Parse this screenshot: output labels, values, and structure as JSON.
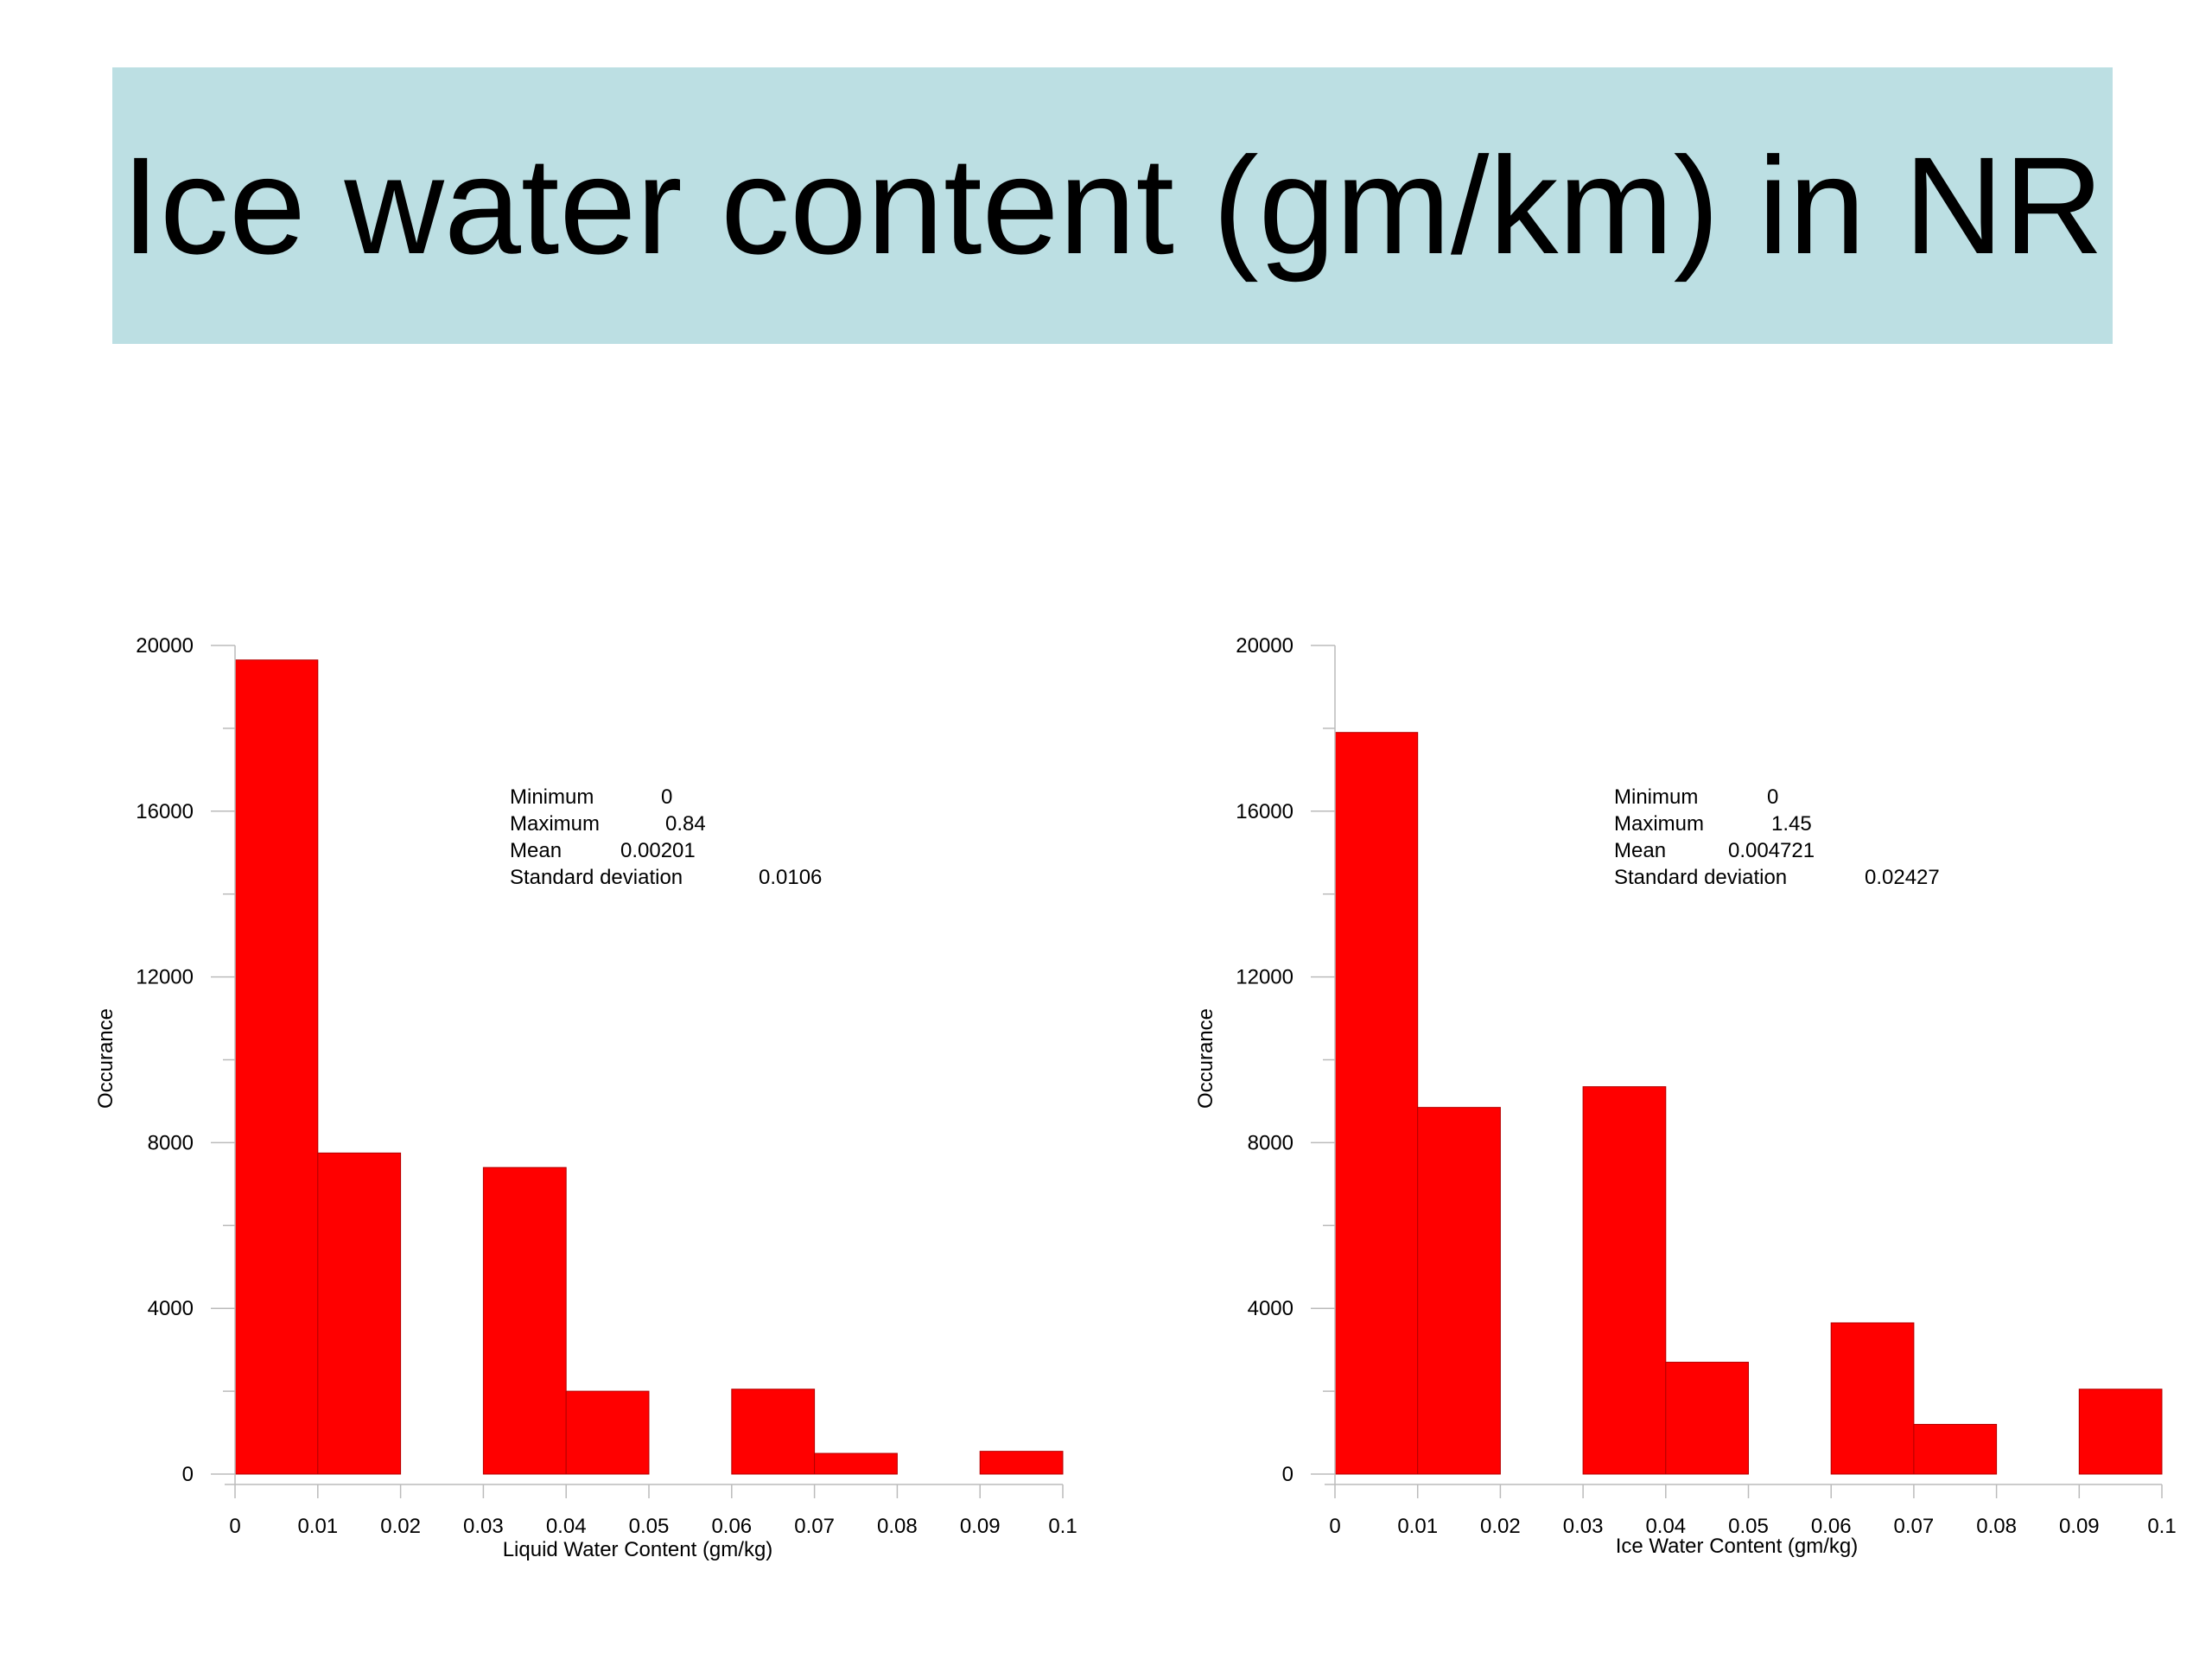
{
  "slide": {
    "title": "Ice water content (gm/km) in NR"
  },
  "colors": {
    "banner": "#bcdfe3",
    "bar": "#ff0000",
    "bar_edge": "#b40000"
  },
  "chart_data": [
    {
      "type": "bar",
      "title": "",
      "xlabel": "Liquid Water Content (gm/kg)",
      "ylabel": "Occurance",
      "bin_edges": [
        0,
        0.01,
        0.02,
        0.03,
        0.04,
        0.05,
        0.06,
        0.07,
        0.08,
        0.09,
        0.1
      ],
      "values": [
        19650,
        7750,
        0,
        7400,
        2000,
        0,
        2050,
        500,
        0,
        550
      ],
      "xlim": [
        0,
        0.1
      ],
      "ylim": [
        0,
        20000
      ],
      "x_ticks": [
        "0",
        "0.01",
        "0.02",
        "0.03",
        "0.04",
        "0.05",
        "0.06",
        "0.07",
        "0.08",
        "0.09",
        "0.1"
      ],
      "y_ticks": [
        "0",
        "4000",
        "8000",
        "12000",
        "16000",
        "20000"
      ],
      "stats": [
        {
          "label": "Minimum",
          "value": "0"
        },
        {
          "label": "Maximum",
          "value": "0.84"
        },
        {
          "label": "Mean",
          "value": "0.00201"
        },
        {
          "label": "Standard deviation",
          "value": "0.0106"
        }
      ],
      "grid": false
    },
    {
      "type": "bar",
      "title": "",
      "xlabel": "Ice Water Content (gm/kg)",
      "ylabel": "Occurance",
      "bin_edges": [
        0,
        0.01,
        0.02,
        0.03,
        0.04,
        0.05,
        0.06,
        0.07,
        0.08,
        0.09,
        0.1
      ],
      "values": [
        17900,
        8850,
        0,
        9350,
        2700,
        0,
        3650,
        1200,
        0,
        2050
      ],
      "xlim": [
        0,
        0.1
      ],
      "ylim": [
        0,
        20000
      ],
      "x_ticks": [
        "0",
        "0.01",
        "0.02",
        "0.03",
        "0.04",
        "0.05",
        "0.06",
        "0.07",
        "0.08",
        "0.09",
        "0.1"
      ],
      "y_ticks": [
        "0",
        "4000",
        "8000",
        "12000",
        "16000",
        "20000"
      ],
      "stats": [
        {
          "label": "Minimum",
          "value": "0"
        },
        {
          "label": "Maximum",
          "value": "1.45"
        },
        {
          "label": "Mean",
          "value": "0.004721"
        },
        {
          "label": "Standard deviation",
          "value": "0.02427"
        }
      ],
      "grid": false
    }
  ]
}
